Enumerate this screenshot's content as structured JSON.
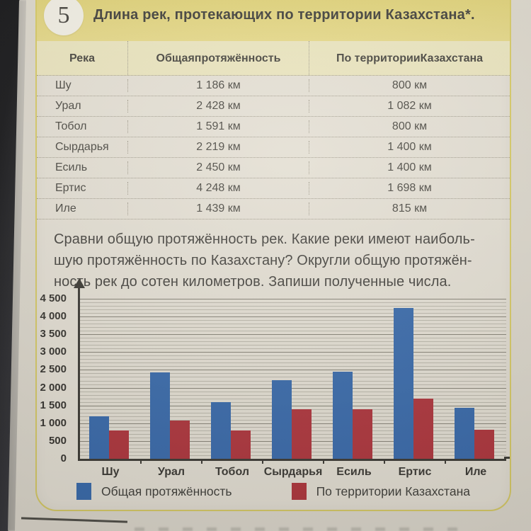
{
  "page": {
    "task_number": "5",
    "title": "Длина рек, протекающих по территории Казахстана*.",
    "prompt": {
      "lines": [
        "Сравни общую протяжённость рек. Какие реки имеют наиболь-",
        "шую протяжённость по Казахстану? Округли общую протяжён-",
        "ность рек до сотен километров. Запиши полученные числа."
      ]
    }
  },
  "table": {
    "columns": [
      {
        "lines": [
          "Река"
        ]
      },
      {
        "lines": [
          "Общая",
          "протяжённость"
        ]
      },
      {
        "lines": [
          "По территории",
          "Казахстана"
        ]
      }
    ],
    "rows": [
      {
        "river": "Шу",
        "total": "1 186 км",
        "in_kz": "800 км"
      },
      {
        "river": "Урал",
        "total": "2 428 км",
        "in_kz": "1 082 км"
      },
      {
        "river": "Тобол",
        "total": "1 591 км",
        "in_kz": "800 км"
      },
      {
        "river": "Сырдарья",
        "total": "2 219 км",
        "in_kz": "1 400 км"
      },
      {
        "river": "Есиль",
        "total": "2 450 км",
        "in_kz": "1 400 км"
      },
      {
        "river": "Ертис",
        "total": "4 248 км",
        "in_kz": "1 698 км"
      },
      {
        "river": "Иле",
        "total": "1 439 км",
        "in_kz": "815 км"
      }
    ]
  },
  "chart_data": {
    "type": "bar",
    "title": "",
    "xlabel": "",
    "ylabel": "",
    "categories": [
      "Шу",
      "Урал",
      "Тобол",
      "Сырдарья",
      "Есиль",
      "Ертис",
      "Иле"
    ],
    "series": [
      {
        "name": "Общая протяжённость",
        "color": "#3d6fb1",
        "values": [
          1186,
          2428,
          1591,
          2219,
          2450,
          4248,
          1439
        ]
      },
      {
        "name": "По территории Казахстана",
        "color": "#b53940",
        "values": [
          800,
          1082,
          800,
          1400,
          1400,
          1698,
          815
        ]
      }
    ],
    "unit": "км",
    "ylim": [
      0,
      4500
    ],
    "ytick_step": 500,
    "minor_grid_step": 100,
    "grid": true,
    "legend_position": "bottom"
  },
  "colors": {
    "band_yellow": "#e6d77f",
    "header_row_yellow": "#f1ebc4",
    "box_border_yellow": "#ddd06a",
    "paper": "#ebe6da",
    "bar_blue": "#3d6fb1",
    "bar_red": "#b53940",
    "axis": "#403e38"
  }
}
